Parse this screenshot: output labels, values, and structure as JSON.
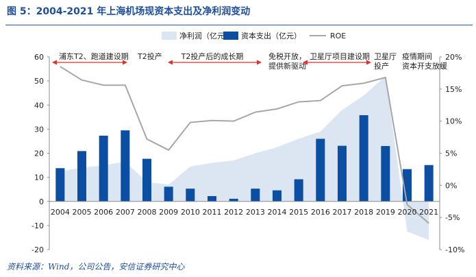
{
  "title": "图 5：2004-2021 年上海机场现资本支出及净利润变动",
  "source": "资料来源：Wind，公司公告，安信证券研究中心",
  "colors": {
    "title": "#1f4e9c",
    "area": "#dce6f2",
    "bar": "#0b4ea2",
    "roe": "#a6a6a6",
    "arrow": "#e0302a",
    "text": "#222222",
    "axis": "#8c8c8c"
  },
  "chart_data": {
    "type": "bar",
    "categories": [
      "2004",
      "2005",
      "2006",
      "2007",
      "2008",
      "2009",
      "2010",
      "2011",
      "2012",
      "2013",
      "2014",
      "2015",
      "2016",
      "2017",
      "2018",
      "2019",
      "2020",
      "2021"
    ],
    "series": [
      {
        "name": "净利润（亿元）",
        "kind": "area",
        "axis": "left",
        "values": [
          12.5,
          14.0,
          15.0,
          16.5,
          8.0,
          7.0,
          14.5,
          16.0,
          17.0,
          20.0,
          22.5,
          26.0,
          29.0,
          38.0,
          44.0,
          52.0,
          -12.5,
          -16.0
        ]
      },
      {
        "name": "资本支出（亿元）",
        "kind": "bar",
        "axis": "left",
        "values": [
          13.8,
          20.9,
          27.3,
          29.5,
          17.7,
          6.1,
          5.3,
          2.2,
          1.1,
          5.3,
          4.6,
          9.2,
          26.0,
          23.1,
          35.8,
          23.0,
          13.4,
          15.1
        ]
      },
      {
        "name": "ROE",
        "kind": "line",
        "axis": "right",
        "values": [
          18.5,
          16.4,
          15.6,
          15.6,
          7.2,
          5.5,
          9.8,
          10.1,
          10.0,
          11.4,
          11.9,
          13.0,
          13.2,
          15.5,
          15.9,
          16.8,
          -3.0,
          -5.9
        ]
      }
    ],
    "legend": [
      "净利润（亿元）",
      "资本支出（亿元）",
      "ROE"
    ],
    "legend_position": "top",
    "ylim_left": [
      -20,
      60
    ],
    "yticks_left": [
      "-20",
      "-10",
      "0",
      "10",
      "20",
      "30",
      "40",
      "50",
      "60"
    ],
    "ylim_right": [
      -10,
      20
    ],
    "yticks_right": [
      "-10%",
      "-5%",
      "0%",
      "5%",
      "10%",
      "15%",
      "20%"
    ],
    "grid": false,
    "annotations": [
      {
        "id": "phase1",
        "lines": [
          "浦东T2、跑道建设期"
        ],
        "arrow_from": "2004",
        "arrow_to": "2007"
      },
      {
        "id": "phase2",
        "lines": [
          "T2投产"
        ]
      },
      {
        "id": "phase3",
        "lines": [
          "T2投产后的成长期"
        ],
        "arrow_from": "2009",
        "arrow_to": "2014"
      },
      {
        "id": "phase4",
        "lines": [
          "免税开放，",
          "提供新驱动"
        ]
      },
      {
        "id": "phase5",
        "lines": [
          "卫星厅项目建设期"
        ],
        "arrow_from": "2015",
        "arrow_to": "2018"
      },
      {
        "id": "phase6",
        "lines": [
          "卫星厅",
          "投产"
        ]
      },
      {
        "id": "phase7",
        "lines": [
          "疫情期间",
          "资本开支放缓"
        ]
      }
    ]
  }
}
